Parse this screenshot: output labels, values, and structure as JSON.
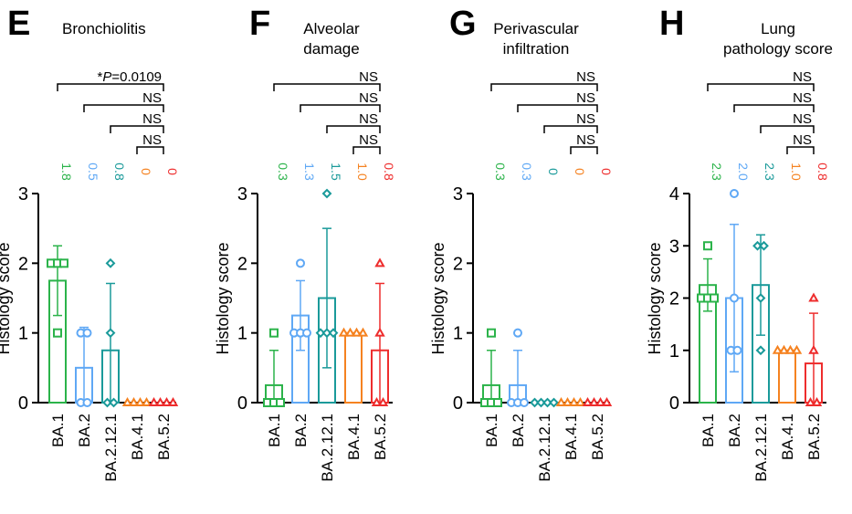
{
  "colors": {
    "BA.1": "#2bb34a",
    "BA.2": "#5fa8f5",
    "BA.2.12.1": "#1a9a9a",
    "BA.4.1": "#f58220",
    "BA.5.2": "#ee2d2d",
    "axis": "#000000"
  },
  "chart_data": [
    {
      "type": "bar",
      "panel": "E",
      "title": "Bronchiolitis",
      "ylabel": "Histology score",
      "ylim": [
        0,
        3
      ],
      "yticks": [
        "0",
        "1",
        "2",
        "3"
      ],
      "categories": [
        "BA.1",
        "BA.2",
        "BA.2.12.1",
        "BA.4.1",
        "BA.5.2"
      ],
      "means": [
        1.75,
        0.5,
        0.75,
        0,
        0
      ],
      "sd": [
        0.5,
        0.58,
        0.96,
        0,
        0
      ],
      "means_label": [
        "1.8",
        "0.5",
        "0.8",
        "0",
        "0"
      ],
      "points": [
        [
          1,
          2,
          2,
          2
        ],
        [
          0,
          0,
          1,
          1
        ],
        [
          0,
          0,
          1,
          2
        ],
        [
          0,
          0,
          0,
          0
        ],
        [
          0,
          0,
          0,
          0
        ]
      ],
      "significance": [
        {
          "text": "*P=0.0109",
          "pre": "*",
          "italic": "P",
          "post": "=0.0109"
        },
        {
          "text": "NS"
        },
        {
          "text": "NS"
        },
        {
          "text": "NS"
        }
      ]
    },
    {
      "type": "bar",
      "panel": "F",
      "title": "Alveolar damage",
      "title_lines": [
        "Alveolar",
        "damage"
      ],
      "ylabel": "Histology score",
      "ylim": [
        0,
        3
      ],
      "yticks": [
        "0",
        "1",
        "2",
        "3"
      ],
      "categories": [
        "BA.1",
        "BA.2",
        "BA.2.12.1",
        "BA.4.1",
        "BA.5.2"
      ],
      "means": [
        0.25,
        1.25,
        1.5,
        1.0,
        0.75
      ],
      "sd": [
        0.5,
        0.5,
        1.0,
        0,
        0.96
      ],
      "means_label": [
        "0.3",
        "1.3",
        "1.5",
        "1.0",
        "0.8"
      ],
      "points": [
        [
          0,
          0,
          0,
          1
        ],
        [
          1,
          1,
          1,
          2
        ],
        [
          1,
          1,
          1,
          3
        ],
        [
          1,
          1,
          1,
          1
        ],
        [
          0,
          0,
          1,
          2
        ]
      ],
      "significance": [
        {
          "text": "NS"
        },
        {
          "text": "NS"
        },
        {
          "text": "NS"
        },
        {
          "text": "NS"
        }
      ]
    },
    {
      "type": "bar",
      "panel": "G",
      "title": "Perivascular infiltration",
      "title_lines": [
        "Perivascular",
        "infiltration"
      ],
      "ylabel": "Histology score",
      "ylim": [
        0,
        3
      ],
      "yticks": [
        "0",
        "1",
        "2",
        "3"
      ],
      "categories": [
        "BA.1",
        "BA.2",
        "BA.2.12.1",
        "BA.4.1",
        "BA.5.2"
      ],
      "means": [
        0.25,
        0.25,
        0,
        0,
        0
      ],
      "sd": [
        0.5,
        0.5,
        0,
        0,
        0
      ],
      "means_label": [
        "0.3",
        "0.3",
        "0",
        "0",
        "0"
      ],
      "points": [
        [
          0,
          0,
          0,
          1
        ],
        [
          0,
          0,
          0,
          1
        ],
        [
          0,
          0,
          0,
          0
        ],
        [
          0,
          0,
          0,
          0
        ],
        [
          0,
          0,
          0,
          0
        ]
      ],
      "significance": [
        {
          "text": "NS"
        },
        {
          "text": "NS"
        },
        {
          "text": "NS"
        },
        {
          "text": "NS"
        }
      ]
    },
    {
      "type": "bar",
      "panel": "H",
      "title": "Lung pathology score",
      "title_lines": [
        "Lung",
        "pathology score"
      ],
      "ylabel": "Histology score",
      "ylim": [
        0,
        4
      ],
      "yticks": [
        "0",
        "1",
        "2",
        "3",
        "4"
      ],
      "categories": [
        "BA.1",
        "BA.2",
        "BA.2.12.1",
        "BA.4.1",
        "BA.5.2"
      ],
      "means": [
        2.25,
        2.0,
        2.25,
        1.0,
        0.75
      ],
      "sd": [
        0.5,
        1.41,
        0.96,
        0,
        0.96
      ],
      "means_label": [
        "2.3",
        "2.0",
        "2.3",
        "1.0",
        "0.8"
      ],
      "points": [
        [
          2,
          2,
          2,
          3
        ],
        [
          1,
          1,
          2,
          4
        ],
        [
          1,
          2,
          3,
          3
        ],
        [
          1,
          1,
          1,
          1
        ],
        [
          0,
          0,
          1,
          2
        ]
      ],
      "significance": [
        {
          "text": "NS"
        },
        {
          "text": "NS"
        },
        {
          "text": "NS"
        },
        {
          "text": "NS"
        }
      ]
    }
  ]
}
